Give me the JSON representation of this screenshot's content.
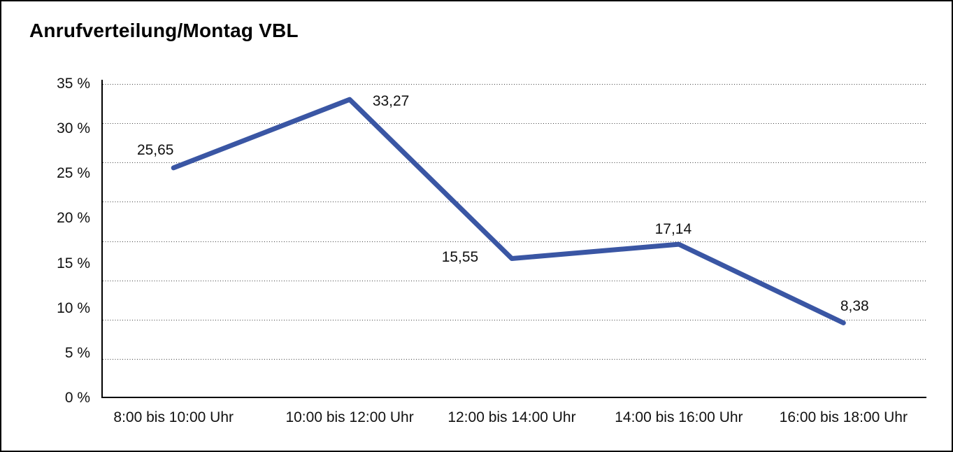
{
  "chart_data": {
    "type": "line",
    "title": "Anrufverteilung/Montag VBL",
    "categories": [
      "8:00 bis 10:00 Uhr",
      "10:00 bis 12:00 Uhr",
      "12:00 bis 14:00 Uhr",
      "14:00 bis 16:00 Uhr",
      "16:00 bis 18:00 Uhr"
    ],
    "values": [
      25.65,
      33.27,
      15.55,
      17.14,
      8.38
    ],
    "data_labels": [
      "25,65",
      "33,27",
      "15,55",
      "17,14",
      "8,38"
    ],
    "y_tick_labels": [
      "35 %",
      "30 %",
      "25 %",
      "20 %",
      "15 %",
      "10 %",
      "5 %",
      "0 %"
    ],
    "ylim": [
      0,
      35
    ],
    "xlabel": "",
    "ylabel": "",
    "legend": "none",
    "grid": "horizontal-dotted",
    "gridline_divisions": 8,
    "line_color": "#3A56A4",
    "axis_color": "#000000",
    "text_color": "#111111"
  }
}
